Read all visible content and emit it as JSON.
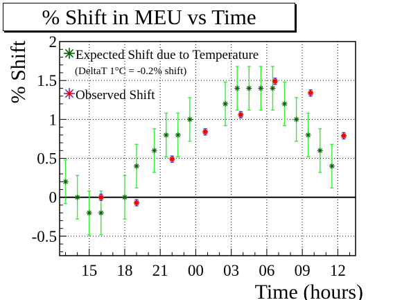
{
  "chart_data": {
    "type": "scatter",
    "title": "% Shift in MEU vs Time",
    "xlabel": "Time (hours)",
    "ylabel": "% Shift",
    "x_tick_labels": [
      "15",
      "18",
      "21",
      "00",
      "03",
      "06",
      "09",
      "12"
    ],
    "x_tick_hours": [
      15,
      18,
      21,
      24,
      27,
      30,
      33,
      36
    ],
    "xlim": [
      12.5,
      37.5
    ],
    "ylim": [
      -0.75,
      2
    ],
    "y_ticks": [
      -0.5,
      0,
      0.5,
      1,
      1.5,
      2
    ],
    "y_tick_labels": [
      "-0.5",
      "0",
      "0.5",
      "1",
      "1.5",
      "2"
    ],
    "grid": true,
    "legend_position": "top-left",
    "series": [
      {
        "name": "Expected Shift due to Temperature",
        "color": "#006400",
        "errorbar_color": "#33ee33",
        "x": [
          13,
          14,
          15,
          16,
          18,
          19,
          20.5,
          21.5,
          22.5,
          23.5,
          26.5,
          27.5,
          28.5,
          29.5,
          30.5,
          31.5,
          32.5,
          33.5,
          34.5,
          35.5
        ],
        "y": [
          0.2,
          0.0,
          -0.2,
          -0.2,
          0.0,
          0.4,
          0.6,
          0.8,
          0.8,
          1.0,
          1.2,
          1.4,
          1.4,
          1.4,
          1.4,
          1.2,
          1.0,
          0.8,
          0.6,
          0.4
        ],
        "yerr": [
          0.28,
          0.28,
          0.28,
          0.28,
          0.28,
          0.28,
          0.28,
          0.28,
          0.28,
          0.28,
          0.28,
          0.28,
          0.28,
          0.28,
          0.28,
          0.28,
          0.28,
          0.28,
          0.28,
          0.28
        ]
      },
      {
        "name": "Observed Shift",
        "color": "#ee0000",
        "errorbar_color": "#3333ee",
        "x": [
          16,
          19,
          22,
          24.8,
          27.8,
          30.7,
          33.7,
          36.5
        ],
        "y": [
          0.0,
          -0.07,
          0.49,
          0.84,
          1.06,
          1.49,
          1.34,
          0.79
        ],
        "yerr": [
          0.04,
          0.04,
          0.04,
          0.04,
          0.04,
          0.04,
          0.04,
          0.04
        ]
      }
    ],
    "legend_note": "(DeltaT 1°C = -0.2% shift)"
  }
}
